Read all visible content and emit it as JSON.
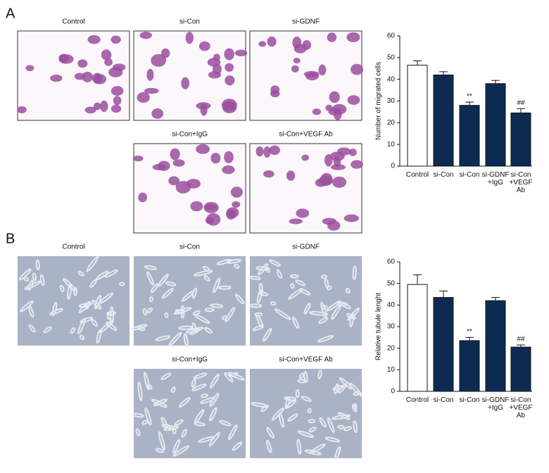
{
  "panels": [
    {
      "label": "A",
      "images": [
        "Control",
        "si-Con",
        "si-GDNF",
        "si-Con+IgG",
        "si-Con+VEGF Ab"
      ]
    },
    {
      "label": "B",
      "images": [
        "Control",
        "si-Con",
        "si-GDNF",
        "si-Con+IgG",
        "si-Con+VEGF Ab"
      ]
    }
  ],
  "chart_data": [
    {
      "type": "bar",
      "ylabel": "Number of migrated cells",
      "categories": [
        "Control",
        "si-Con",
        "si-Con",
        "si-GDNF\n+IgG",
        "si-Con\n+VEGF\nAb"
      ],
      "values": [
        46.5,
        42,
        28,
        38,
        24.5
      ],
      "errors": [
        2,
        1.5,
        1.5,
        1.5,
        2
      ],
      "colors": [
        "#ffffff",
        "#0d2b52",
        "#0d2b52",
        "#0d2b52",
        "#0d2b52"
      ],
      "annotations": [
        {
          "index": 2,
          "text": "**"
        },
        {
          "index": 4,
          "text": "##"
        }
      ],
      "ylim": [
        0,
        60
      ],
      "yticks": [
        0,
        10,
        20,
        30,
        40,
        50,
        60
      ]
    },
    {
      "type": "bar",
      "ylabel": "Relative tubule lenght",
      "categories": [
        "Control",
        "si-Con",
        "si-Con",
        "si-GDNF\n+IgG",
        "si-Con\n+VEGF\nAb"
      ],
      "values": [
        49.5,
        43.5,
        23.5,
        42,
        20.5
      ],
      "errors": [
        4.5,
        3,
        1.5,
        1.5,
        1
      ],
      "colors": [
        "#ffffff",
        "#0d2b52",
        "#0d2b52",
        "#0d2b52",
        "#0d2b52"
      ],
      "annotations": [
        {
          "index": 2,
          "text": "**"
        },
        {
          "index": 4,
          "text": "##"
        }
      ],
      "ylim": [
        0,
        60
      ],
      "yticks": [
        0,
        10,
        20,
        30,
        40,
        50,
        60
      ]
    }
  ]
}
